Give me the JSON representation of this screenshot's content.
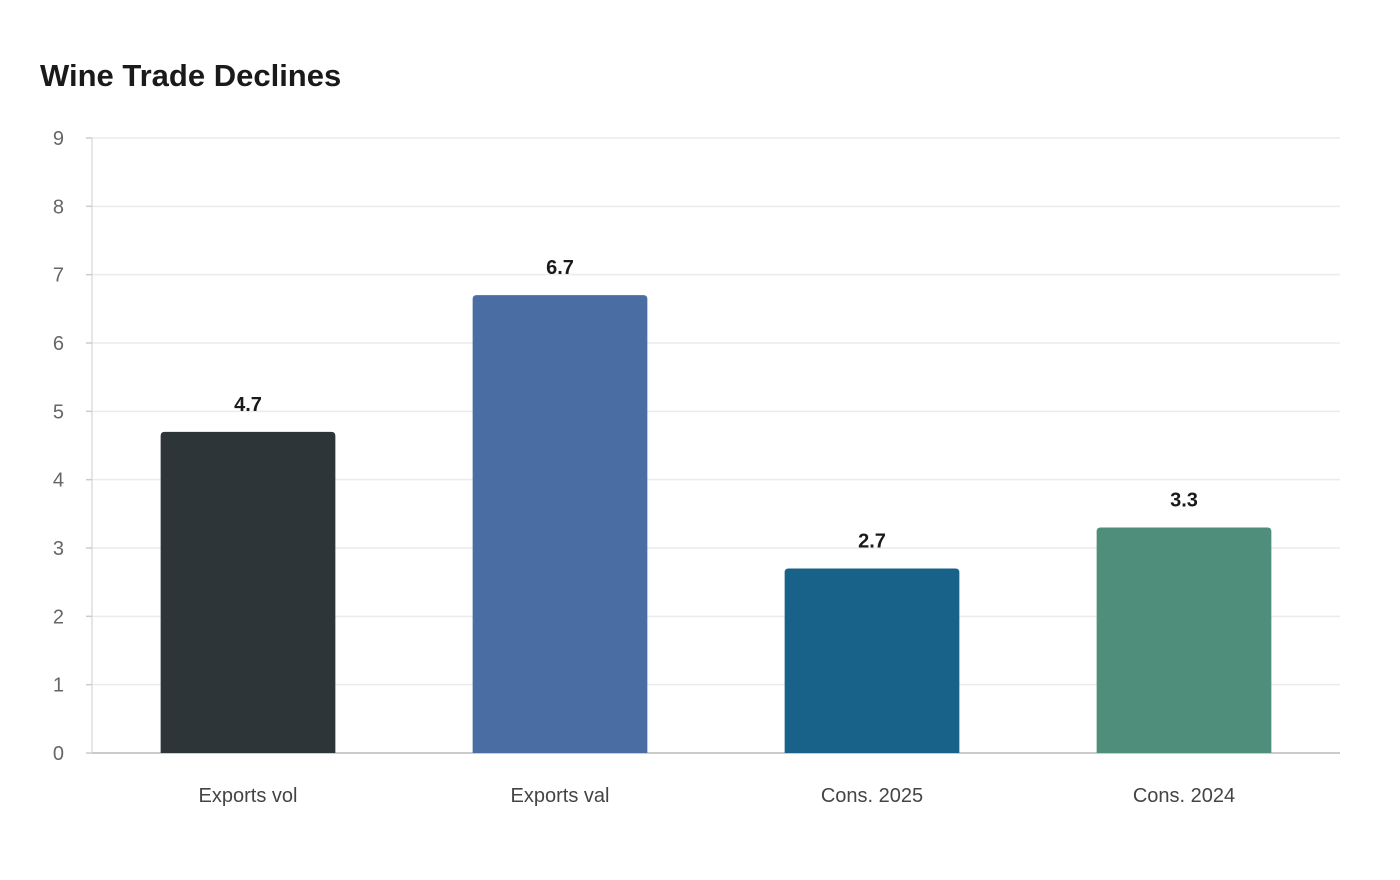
{
  "chart_data": {
    "type": "bar",
    "title": "Wine Trade Declines",
    "xlabel": "",
    "ylabel": "",
    "categories": [
      "Exports vol",
      "Exports val",
      "Cons. 2025",
      "Cons. 2024"
    ],
    "values": [
      4.7,
      6.7,
      2.7,
      3.3
    ],
    "value_labels": [
      "4.7",
      "6.7",
      "2.7",
      "3.3"
    ],
    "colors": [
      "#2d3538",
      "#4a6ea3",
      "#186188",
      "#4e8e7b"
    ],
    "ylim": [
      0,
      9
    ],
    "yticks": [
      0,
      1,
      2,
      3,
      4,
      5,
      6,
      7,
      8,
      9
    ],
    "grid": true,
    "legend": "none"
  }
}
